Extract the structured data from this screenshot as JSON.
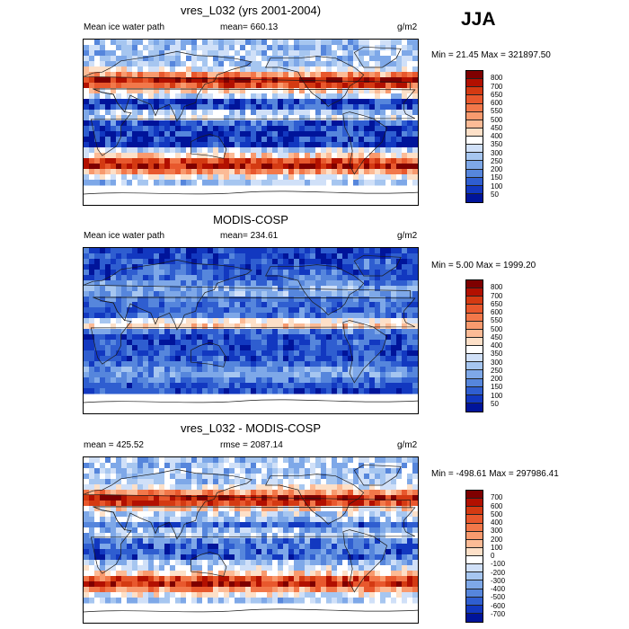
{
  "season": "JJA",
  "units_label": "g/m2",
  "coast_color": "#1a1a1a",
  "chart_data": [
    {
      "type": "heatmap",
      "title": "vres_L032 (yrs 2001-2004)",
      "left_label": "Mean ice water path",
      "center_label": "mean= 660.13",
      "right_label": "g/m2",
      "stats": "Min =  21.45 Max = 321897.50",
      "min": 21.45,
      "max": 321897.5,
      "mean": 660.13,
      "colorbar": {
        "levels": [
          "800",
          "700",
          "650",
          "600",
          "550",
          "500",
          "450",
          "400",
          "350",
          "300",
          "250",
          "200",
          "150",
          "100",
          "50"
        ],
        "colors": [
          "#7f0000",
          "#b21000",
          "#d43a12",
          "#e8582d",
          "#f2784a",
          "#f89a6e",
          "#fcbb96",
          "#fde0c8",
          "#ffffff",
          "#d0e0f8",
          "#a6c6f0",
          "#7ea8e8",
          "#5686dc",
          "#2f5ed0",
          "#1238c0",
          "#00149a"
        ]
      }
    },
    {
      "type": "heatmap",
      "title": "MODIS-COSP",
      "left_label": "Mean ice water path",
      "center_label": "mean= 234.61",
      "right_label": "g/m2",
      "stats": "Min =   5.00 Max = 1999.20",
      "min": 5.0,
      "max": 1999.2,
      "mean": 234.61,
      "colorbar": {
        "levels": [
          "800",
          "700",
          "650",
          "600",
          "550",
          "500",
          "450",
          "400",
          "350",
          "300",
          "250",
          "200",
          "150",
          "100",
          "50"
        ],
        "colors": [
          "#7f0000",
          "#b21000",
          "#d43a12",
          "#e8582d",
          "#f2784a",
          "#f89a6e",
          "#fcbb96",
          "#fde0c8",
          "#ffffff",
          "#d0e0f8",
          "#a6c6f0",
          "#7ea8e8",
          "#5686dc",
          "#2f5ed0",
          "#1238c0",
          "#00149a"
        ]
      }
    },
    {
      "type": "heatmap",
      "title": "vres_L032 - MODIS-COSP",
      "left_label": "mean = 425.52",
      "center_label": "rmse = 2087.14",
      "right_label": "g/m2",
      "stats": "Min = -498.61 Max = 297986.41",
      "min": -498.61,
      "max": 297986.41,
      "mean": 425.52,
      "rmse": 2087.14,
      "colorbar": {
        "levels": [
          "700",
          "600",
          "500",
          "400",
          "300",
          "200",
          "100",
          "0",
          "-100",
          "-200",
          "-300",
          "-400",
          "-500",
          "-600",
          "-700"
        ],
        "colors": [
          "#7f0000",
          "#b21000",
          "#d43a12",
          "#e8582d",
          "#f2784a",
          "#f89a6e",
          "#fcbb96",
          "#fde0c8",
          "#ffffff",
          "#d0e0f8",
          "#a6c6f0",
          "#7ea8e8",
          "#5686dc",
          "#2f5ed0",
          "#1238c0",
          "#00149a"
        ]
      }
    }
  ]
}
